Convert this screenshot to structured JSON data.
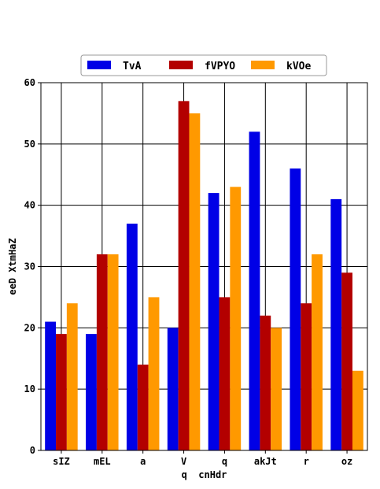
{
  "chart_data": {
    "type": "bar",
    "title": "",
    "xlabel": "q  cnHdr",
    "ylabel": "eeD XtmHaZ",
    "categories": [
      "sIZ",
      "mEL",
      "a",
      "V",
      "q",
      "akJt",
      "r",
      "oz"
    ],
    "series": [
      {
        "name": "TvA",
        "color": "#0000e6",
        "values": [
          21,
          19,
          37,
          20,
          42,
          52,
          46,
          41
        ]
      },
      {
        "name": "fVPYO",
        "color": "#b30000",
        "values": [
          19,
          32,
          14,
          57,
          25,
          22,
          24,
          29
        ]
      },
      {
        "name": "kVOe",
        "color": "#ff9900",
        "values": [
          24,
          32,
          25,
          55,
          43,
          20,
          32,
          13
        ]
      }
    ],
    "ylim": [
      0,
      60
    ],
    "yticks": [
      0,
      10,
      20,
      30,
      40,
      50,
      60
    ],
    "grid": true,
    "legend_position": "top-center"
  }
}
